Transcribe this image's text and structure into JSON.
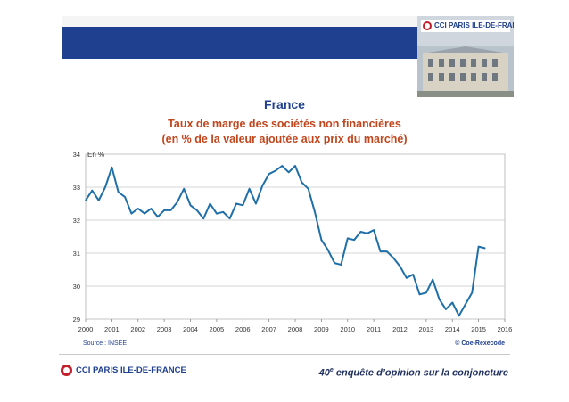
{
  "header": {
    "logo_text": "CCI PARIS ILE-DE-FRANCE"
  },
  "titles": {
    "main": "France",
    "line1": "Taux de marge des sociétés non financières",
    "line2": "(en % de la valeur ajoutée aux prix du marché)"
  },
  "chart_data": {
    "type": "line",
    "title": "Taux de marge des sociétés non financières",
    "unit_label": "En %",
    "xlabel": "",
    "ylabel": "",
    "xlim": [
      2000,
      2016
    ],
    "ylim": [
      29,
      34
    ],
    "x_ticks": [
      "2000",
      "2001",
      "2002",
      "2003",
      "2004",
      "2005",
      "2006",
      "2007",
      "2008",
      "2009",
      "2010",
      "2011",
      "2012",
      "2013",
      "2014",
      "2015",
      "2016"
    ],
    "y_ticks": [
      "29",
      "30",
      "31",
      "32",
      "33",
      "34"
    ],
    "grid": "horizontal",
    "line_color": "#1f6fa8",
    "series": [
      {
        "x": [
          2000.0,
          2000.25,
          2000.5,
          2000.75,
          2001.0,
          2001.25,
          2001.5,
          2001.75,
          2002.0,
          2002.25,
          2002.5,
          2002.75,
          2003.0,
          2003.25,
          2003.5,
          2003.75,
          2004.0,
          2004.25,
          2004.5,
          2004.75,
          2005.0,
          2005.25,
          2005.5,
          2005.75,
          2006.0,
          2006.25,
          2006.5,
          2006.75,
          2007.0,
          2007.25,
          2007.5,
          2007.75,
          2008.0,
          2008.25,
          2008.5,
          2008.75,
          2009.0,
          2009.25,
          2009.5,
          2009.75,
          2010.0,
          2010.25,
          2010.5,
          2010.75,
          2011.0,
          2011.25,
          2011.5,
          2011.75,
          2012.0,
          2012.25,
          2012.5,
          2012.75,
          2013.0,
          2013.25,
          2013.5,
          2013.75,
          2014.0,
          2014.25,
          2014.5,
          2014.75,
          2015.0,
          2015.25
        ],
        "values": [
          32.6,
          32.9,
          32.6,
          33.0,
          33.6,
          32.85,
          32.7,
          32.2,
          32.35,
          32.2,
          32.35,
          32.1,
          32.3,
          32.3,
          32.55,
          32.95,
          32.45,
          32.3,
          32.05,
          32.5,
          32.2,
          32.25,
          32.05,
          32.5,
          32.45,
          32.95,
          32.5,
          33.05,
          33.4,
          33.5,
          33.65,
          33.45,
          33.65,
          33.15,
          32.95,
          32.25,
          31.4,
          31.1,
          30.7,
          30.65,
          31.45,
          31.4,
          31.65,
          31.6,
          31.7,
          31.05,
          31.05,
          30.85,
          30.6,
          30.25,
          30.35,
          29.75,
          29.8,
          30.2,
          29.6,
          29.3,
          29.5,
          29.1,
          29.45,
          29.8,
          31.2,
          31.15
        ]
      }
    ]
  },
  "footer": {
    "source": "Source : INSEE",
    "copyright": "© Coe-Rexecode",
    "logo_text": "CCI PARIS ILE-DE-FRANCE",
    "survey_number": "40",
    "survey_suffix": "e",
    "survey_text": " enquête d’opinion sur la conjoncture"
  }
}
